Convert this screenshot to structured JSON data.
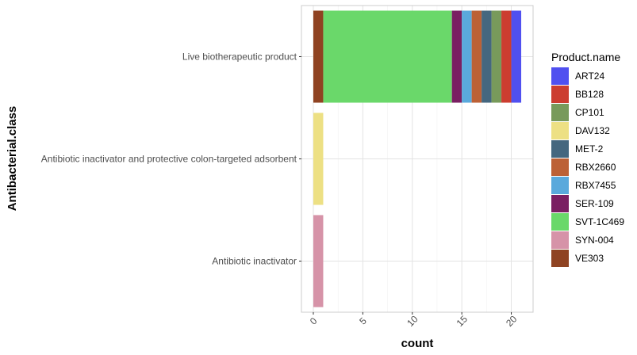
{
  "chart_data": {
    "type": "bar",
    "orientation": "horizontal",
    "stacked": true,
    "xlabel": "count",
    "ylabel": "Antibacterial.class",
    "xlim": [
      -1.2,
      22.2
    ],
    "xticks": [
      0,
      5,
      10,
      15,
      20
    ],
    "categories": [
      "Live biotherapeutic product",
      "Antibiotic inactivator and protective colon-targeted adsorbent",
      "Antibiotic inactivator"
    ],
    "legend": {
      "title": "Product.name",
      "position": "right",
      "items": [
        {
          "name": "ART24",
          "color": "#5050f0"
        },
        {
          "name": "BB128",
          "color": "#cc3d30"
        },
        {
          "name": "CP101",
          "color": "#789a5b"
        },
        {
          "name": "DAV132",
          "color": "#ede084"
        },
        {
          "name": "MET-2",
          "color": "#45677f"
        },
        {
          "name": "RBX2660",
          "color": "#bc6136"
        },
        {
          "name": "RBX7455",
          "color": "#5aa9dc"
        },
        {
          "name": "SER-109",
          "color": "#7a1f62"
        },
        {
          "name": "SVT-1C469",
          "color": "#6ad86a"
        },
        {
          "name": "SYN-004",
          "color": "#d693a8"
        },
        {
          "name": "VE303",
          "color": "#8f4322"
        }
      ]
    },
    "bars": [
      {
        "category": "Live biotherapeutic product",
        "segments": [
          {
            "name": "VE303",
            "value": 1
          },
          {
            "name": "SVT-1C469",
            "value": 13
          },
          {
            "name": "SER-109",
            "value": 1
          },
          {
            "name": "RBX7455",
            "value": 1
          },
          {
            "name": "RBX2660",
            "value": 1
          },
          {
            "name": "MET-2",
            "value": 1
          },
          {
            "name": "CP101",
            "value": 1
          },
          {
            "name": "BB128",
            "value": 1
          },
          {
            "name": "ART24",
            "value": 1
          }
        ]
      },
      {
        "category": "Antibiotic inactivator and protective colon-targeted adsorbent",
        "segments": [
          {
            "name": "DAV132",
            "value": 1
          }
        ]
      },
      {
        "category": "Antibiotic inactivator",
        "segments": [
          {
            "name": "SYN-004",
            "value": 1
          }
        ]
      }
    ],
    "grid": true,
    "background": "#ffffff",
    "gridColor": "#ebebeb"
  }
}
